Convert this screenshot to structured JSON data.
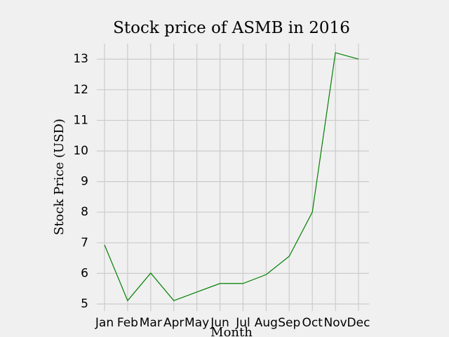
{
  "chart_data": {
    "type": "line",
    "title": "Stock price of ASMB in 2016",
    "x_label": "Month",
    "y_label": "Stock Price (USD)",
    "categories": [
      "Jan",
      "Feb",
      "Mar",
      "Apr",
      "May",
      "Jun",
      "Jul",
      "Aug",
      "Sep",
      "Oct",
      "Nov",
      "Dec"
    ],
    "series": [
      {
        "name": "ASMB",
        "color": "#008000",
        "values": [
          6.93,
          5.11,
          6.01,
          5.11,
          5.39,
          5.67,
          5.67,
          5.96,
          6.56,
          8.0,
          13.21,
          13.0
        ]
      }
    ],
    "ylim": [
      4.77,
      13.51
    ],
    "yticks": [
      5,
      6,
      7,
      8,
      9,
      10,
      11,
      12,
      13
    ],
    "grid": true
  }
}
